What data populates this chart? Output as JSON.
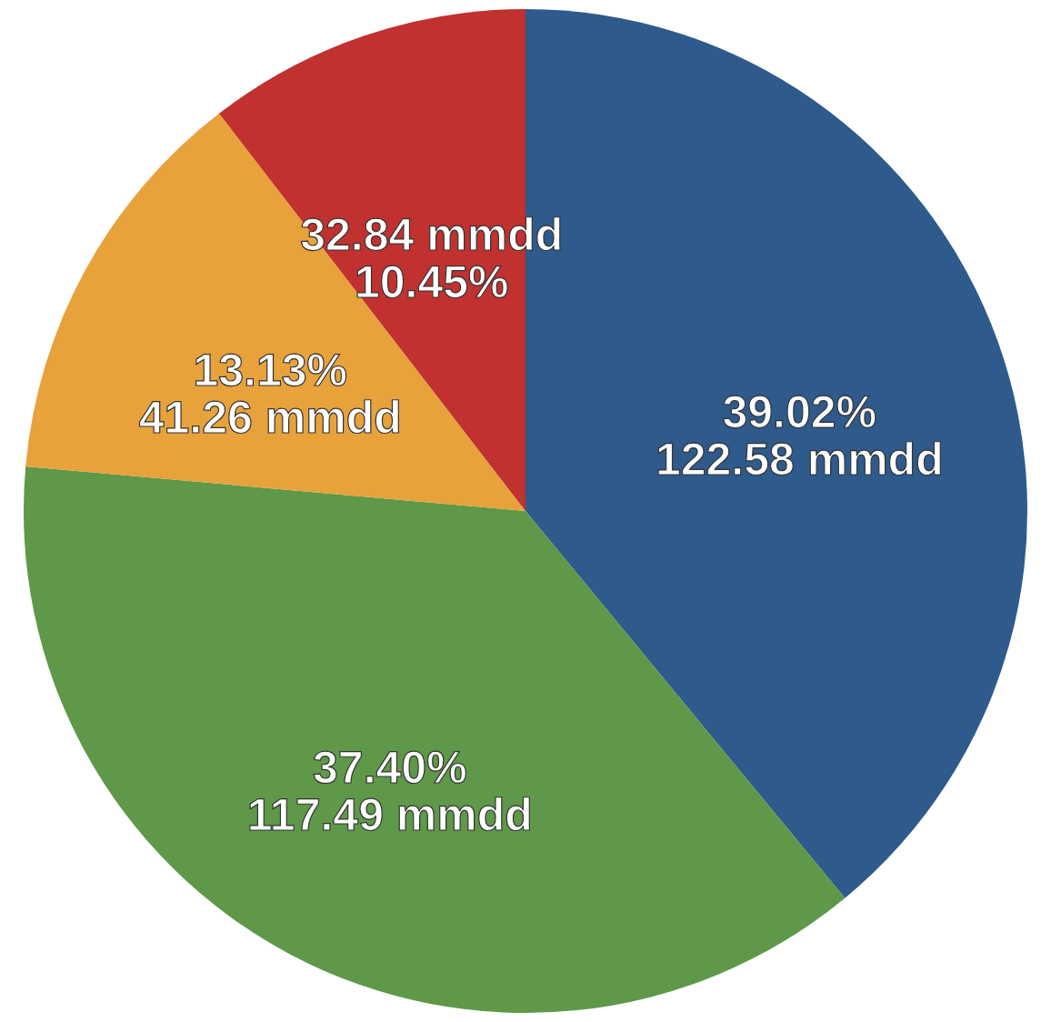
{
  "chart_data": {
    "type": "pie",
    "categories": [
      null,
      null,
      null,
      null
    ],
    "values": [
      122.58,
      117.49,
      41.26,
      32.84
    ],
    "colors": [
      "#2e5a8c",
      "#5e9848",
      "#e8a23c",
      "#c0312f"
    ],
    "value_labels": [
      "39.02%\n122.58 mmdd",
      "37.40%\n117.49 mmdd",
      "13.13%\n41.26 mmdd",
      "32.84 mmdd\n10.45%"
    ]
  }
}
